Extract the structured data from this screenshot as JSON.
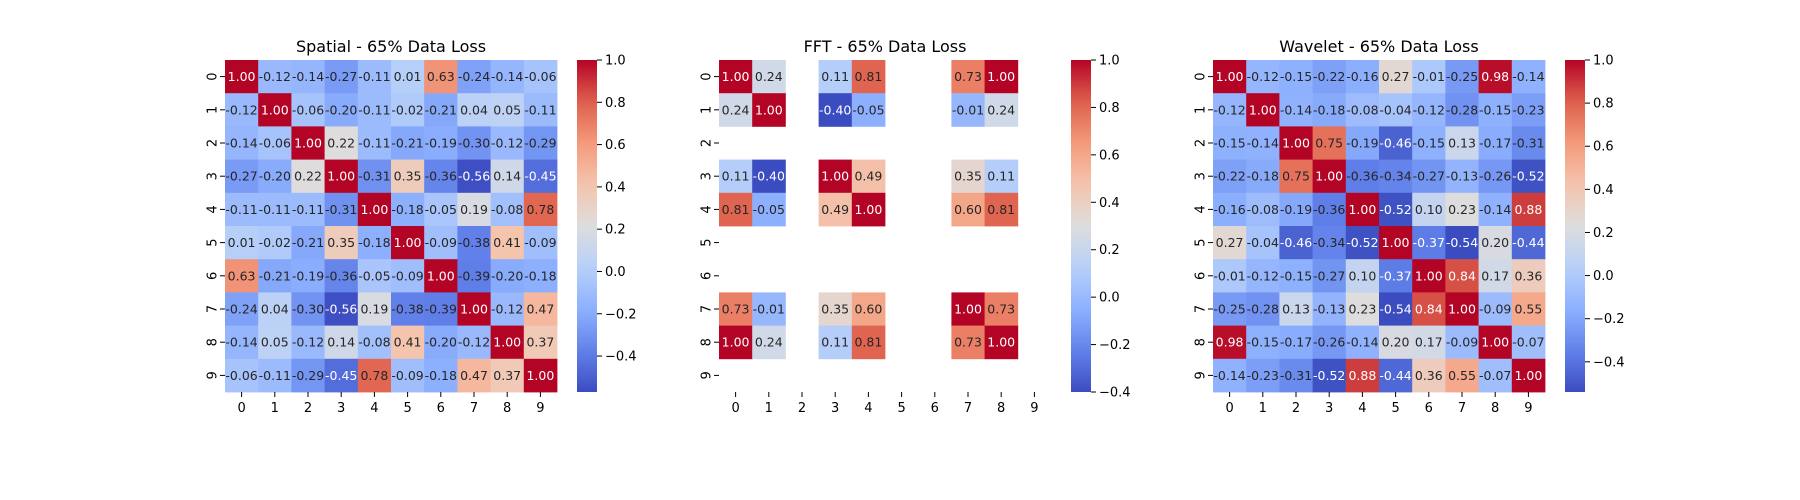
{
  "colormap": "coolwarm",
  "colors": {
    "low": "#3b4cc0",
    "mid": "#dddddd",
    "high": "#b40426",
    "missing": "#ffffff"
  },
  "chart_data": [
    {
      "type": "heatmap",
      "title": "Spatial - 65% Data Loss",
      "x_ticks": [
        "0",
        "1",
        "2",
        "3",
        "4",
        "5",
        "6",
        "7",
        "8",
        "9"
      ],
      "y_ticks": [
        "0",
        "1",
        "2",
        "3",
        "4",
        "5",
        "6",
        "7",
        "8",
        "9"
      ],
      "vmin": -0.57,
      "vmax": 1.0,
      "colorbar_ticks": [
        "−0.4",
        "−0.2",
        "0.0",
        "0.2",
        "0.4",
        "0.6",
        "0.8",
        "1.0"
      ],
      "colorbar_tick_values": [
        -0.4,
        -0.2,
        0.0,
        0.2,
        0.4,
        0.6,
        0.8,
        1.0
      ],
      "matrix": [
        [
          1.0,
          -0.12,
          -0.14,
          -0.27,
          -0.11,
          0.01,
          0.63,
          -0.24,
          -0.14,
          -0.06
        ],
        [
          -0.12,
          1.0,
          -0.06,
          -0.2,
          -0.11,
          -0.02,
          -0.21,
          0.04,
          0.05,
          -0.11
        ],
        [
          -0.14,
          -0.06,
          1.0,
          0.22,
          -0.11,
          -0.21,
          -0.19,
          -0.3,
          -0.12,
          -0.29
        ],
        [
          -0.27,
          -0.2,
          0.22,
          1.0,
          -0.31,
          0.35,
          -0.36,
          -0.56,
          0.14,
          -0.45
        ],
        [
          -0.11,
          -0.11,
          -0.11,
          -0.31,
          1.0,
          -0.18,
          -0.05,
          0.19,
          -0.08,
          0.78
        ],
        [
          0.01,
          -0.02,
          -0.21,
          0.35,
          -0.18,
          1.0,
          -0.09,
          -0.38,
          0.41,
          -0.09
        ],
        [
          0.63,
          -0.21,
          -0.19,
          -0.36,
          -0.05,
          -0.09,
          1.0,
          -0.39,
          -0.2,
          -0.18
        ],
        [
          -0.24,
          0.04,
          -0.3,
          -0.56,
          0.19,
          -0.38,
          -0.39,
          1.0,
          -0.12,
          0.47
        ],
        [
          -0.14,
          0.05,
          -0.12,
          0.14,
          -0.08,
          0.41,
          -0.2,
          -0.12,
          1.0,
          0.37
        ],
        [
          -0.06,
          -0.11,
          -0.29,
          -0.45,
          0.78,
          -0.09,
          -0.18,
          0.47,
          0.37,
          1.0
        ]
      ]
    },
    {
      "type": "heatmap",
      "title": "FFT - 65% Data Loss",
      "x_ticks": [
        "0",
        "1",
        "2",
        "3",
        "4",
        "5",
        "6",
        "7",
        "8",
        "9"
      ],
      "y_ticks": [
        "0",
        "1",
        "2",
        "3",
        "4",
        "5",
        "6",
        "7",
        "8",
        "9"
      ],
      "vmin": -0.4,
      "vmax": 1.0,
      "colorbar_ticks": [
        "−0.4",
        "−0.2",
        "0.0",
        "0.2",
        "0.4",
        "0.6",
        "0.8",
        "1.0"
      ],
      "colorbar_tick_values": [
        -0.4,
        -0.2,
        0.0,
        0.2,
        0.4,
        0.6,
        0.8,
        1.0
      ],
      "matrix": [
        [
          1.0,
          0.24,
          null,
          0.11,
          0.81,
          null,
          null,
          0.73,
          1.0,
          null
        ],
        [
          0.24,
          1.0,
          null,
          -0.4,
          -0.05,
          null,
          null,
          -0.01,
          0.24,
          null
        ],
        [
          null,
          null,
          null,
          null,
          null,
          null,
          null,
          null,
          null,
          null
        ],
        [
          0.11,
          -0.4,
          null,
          1.0,
          0.49,
          null,
          null,
          0.35,
          0.11,
          null
        ],
        [
          0.81,
          -0.05,
          null,
          0.49,
          1.0,
          null,
          null,
          0.6,
          0.81,
          null
        ],
        [
          null,
          null,
          null,
          null,
          null,
          null,
          null,
          null,
          null,
          null
        ],
        [
          null,
          null,
          null,
          null,
          null,
          null,
          null,
          null,
          null,
          null
        ],
        [
          0.73,
          -0.01,
          null,
          0.35,
          0.6,
          null,
          null,
          1.0,
          0.73,
          null
        ],
        [
          1.0,
          0.24,
          null,
          0.11,
          0.81,
          null,
          null,
          0.73,
          1.0,
          null
        ],
        [
          null,
          null,
          null,
          null,
          null,
          null,
          null,
          null,
          null,
          null
        ]
      ]
    },
    {
      "type": "heatmap",
      "title": "Wavelet - 65% Data Loss",
      "x_ticks": [
        "0",
        "1",
        "2",
        "3",
        "4",
        "5",
        "6",
        "7",
        "8",
        "9"
      ],
      "y_ticks": [
        "0",
        "1",
        "2",
        "3",
        "4",
        "5",
        "6",
        "7",
        "8",
        "9"
      ],
      "vmin": -0.54,
      "vmax": 1.0,
      "colorbar_ticks": [
        "−0.4",
        "−0.2",
        "0.0",
        "0.2",
        "0.4",
        "0.6",
        "0.8",
        "1.0"
      ],
      "colorbar_tick_values": [
        -0.4,
        -0.2,
        0.0,
        0.2,
        0.4,
        0.6,
        0.8,
        1.0
      ],
      "matrix": [
        [
          1.0,
          -0.12,
          -0.15,
          -0.22,
          -0.16,
          0.27,
          -0.01,
          -0.25,
          0.98,
          -0.14
        ],
        [
          -0.12,
          1.0,
          -0.14,
          -0.18,
          -0.08,
          -0.04,
          -0.12,
          -0.28,
          -0.15,
          -0.23
        ],
        [
          -0.15,
          -0.14,
          1.0,
          0.75,
          -0.19,
          -0.46,
          -0.15,
          0.13,
          -0.17,
          -0.31
        ],
        [
          -0.22,
          -0.18,
          0.75,
          1.0,
          -0.36,
          -0.34,
          -0.27,
          -0.13,
          -0.26,
          -0.52
        ],
        [
          -0.16,
          -0.08,
          -0.19,
          -0.36,
          1.0,
          -0.52,
          0.1,
          0.23,
          -0.14,
          0.88
        ],
        [
          0.27,
          -0.04,
          -0.46,
          -0.34,
          -0.52,
          1.0,
          -0.37,
          -0.54,
          0.2,
          -0.44
        ],
        [
          -0.01,
          -0.12,
          -0.15,
          -0.27,
          0.1,
          -0.37,
          1.0,
          0.84,
          0.17,
          0.36
        ],
        [
          -0.25,
          -0.28,
          0.13,
          -0.13,
          0.23,
          -0.54,
          0.84,
          1.0,
          -0.09,
          0.55
        ],
        [
          0.98,
          -0.15,
          -0.17,
          -0.26,
          -0.14,
          0.2,
          0.17,
          -0.09,
          1.0,
          -0.07
        ],
        [
          -0.14,
          -0.23,
          -0.31,
          -0.52,
          0.88,
          -0.44,
          0.36,
          0.55,
          -0.07,
          1.0
        ]
      ]
    }
  ]
}
